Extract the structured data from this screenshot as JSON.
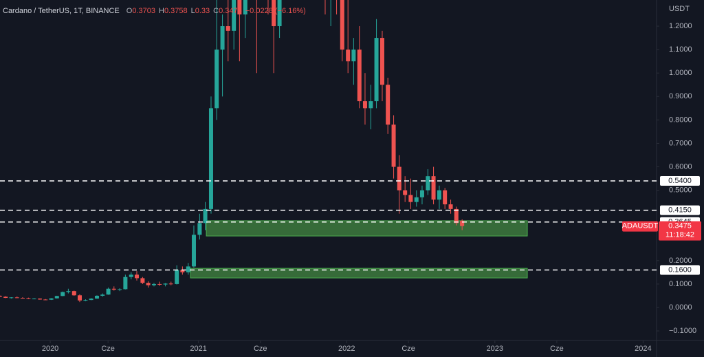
{
  "chart_data": {
    "type": "candlestick",
    "title": "Cardano / TetherUS, 1T, BINANCE",
    "ohlc_letters": [
      "O",
      "H",
      "L",
      "C"
    ],
    "change_label": "−0.0228 (−6.16%)",
    "y_axis_label": "USDT",
    "up_color": "#26a69a",
    "down_color": "#ef5350",
    "x": [
      2019.66,
      2019.699,
      2019.737,
      2019.776,
      2019.814,
      2019.853,
      2019.891,
      2019.93,
      2019.968,
      2020.007,
      2020.045,
      2020.084,
      2020.122,
      2020.161,
      2020.199,
      2020.238,
      2020.276,
      2020.315,
      2020.353,
      2020.392,
      2020.43,
      2020.469,
      2020.507,
      2020.546,
      2020.584,
      2020.623,
      2020.661,
      2020.7,
      2020.738,
      2020.777,
      2020.815,
      2020.854,
      2020.892,
      2020.931,
      2020.969,
      2021.008,
      2021.046,
      2021.085,
      2021.123,
      2021.162,
      2021.2,
      2021.239,
      2021.277,
      2021.316,
      2021.354,
      2021.393,
      2021.431,
      2021.47,
      2021.508,
      2021.547,
      2021.585,
      2021.624,
      2021.662,
      2021.701,
      2021.739,
      2021.778,
      2021.816,
      2021.855,
      2021.893,
      2021.932,
      2021.97,
      2022.009,
      2022.047,
      2022.086,
      2022.124,
      2022.163,
      2022.201,
      2022.24,
      2022.278,
      2022.317,
      2022.355,
      2022.394,
      2022.432,
      2022.471,
      2022.509,
      2022.548,
      2022.586,
      2022.625,
      2022.663,
      2022.702,
      2022.74,
      2022.779
    ],
    "open": [
      0.05,
      0.046,
      0.041,
      0.043,
      0.041,
      0.04,
      0.037,
      0.038,
      0.034,
      0.033,
      0.039,
      0.049,
      0.066,
      0.07,
      0.052,
      0.03,
      0.032,
      0.038,
      0.05,
      0.055,
      0.08,
      0.076,
      0.078,
      0.13,
      0.14,
      0.125,
      0.105,
      0.095,
      0.1,
      0.098,
      0.102,
      0.1,
      0.16,
      0.15,
      0.175,
      0.31,
      0.36,
      0.42,
      0.85,
      1.1,
      1.2,
      1.18,
      1.4,
      1.25,
      1.55,
      2.2,
      1.5,
      1.45,
      1.35,
      1.2,
      1.38,
      2.1,
      2.8,
      2.3,
      2.15,
      2.1,
      1.95,
      1.6,
      1.35,
      1.45,
      1.32,
      1.1,
      1.05,
      1.1,
      0.88,
      0.85,
      0.88,
      1.15,
      0.95,
      0.78,
      0.6,
      0.5,
      0.48,
      0.45,
      0.47,
      0.5,
      0.56,
      0.46,
      0.5,
      0.44,
      0.42,
      0.3703
    ],
    "high": [
      0.052,
      0.048,
      0.044,
      0.047,
      0.044,
      0.042,
      0.04,
      0.039,
      0.036,
      0.04,
      0.05,
      0.068,
      0.08,
      0.072,
      0.056,
      0.035,
      0.04,
      0.052,
      0.06,
      0.085,
      0.09,
      0.082,
      0.14,
      0.15,
      0.155,
      0.13,
      0.112,
      0.105,
      0.11,
      0.104,
      0.11,
      0.18,
      0.175,
      0.19,
      0.35,
      0.4,
      0.45,
      0.9,
      1.48,
      1.25,
      1.35,
      1.45,
      1.55,
      1.7,
      2.45,
      2.3,
      1.8,
      1.6,
      1.45,
      1.4,
      2.2,
      3.0,
      3.1,
      2.4,
      2.25,
      2.2,
      2.1,
      1.75,
      1.5,
      1.5,
      1.35,
      1.6,
      1.15,
      1.2,
      1.0,
      0.95,
      1.23,
      1.18,
      0.98,
      0.82,
      0.65,
      0.56,
      0.55,
      0.5,
      0.52,
      0.59,
      0.6,
      0.52,
      0.51,
      0.46,
      0.43,
      0.3758
    ],
    "low": [
      0.044,
      0.04,
      0.038,
      0.04,
      0.038,
      0.036,
      0.035,
      0.033,
      0.032,
      0.032,
      0.038,
      0.048,
      0.06,
      0.05,
      0.023,
      0.027,
      0.031,
      0.037,
      0.046,
      0.054,
      0.072,
      0.07,
      0.077,
      0.12,
      0.115,
      0.1,
      0.085,
      0.09,
      0.092,
      0.09,
      0.095,
      0.098,
      0.14,
      0.14,
      0.17,
      0.29,
      0.33,
      0.4,
      0.8,
      0.9,
      1.05,
      1.1,
      1.05,
      1.15,
      1.5,
      1.0,
      1.35,
      1.25,
      1.0,
      1.15,
      1.35,
      2.0,
      2.2,
      2.0,
      2.0,
      1.85,
      1.5,
      1.25,
      1.2,
      1.25,
      1.05,
      1.0,
      0.95,
      0.85,
      0.78,
      0.76,
      0.85,
      0.88,
      0.74,
      0.55,
      0.4,
      0.45,
      0.42,
      0.43,
      0.44,
      0.48,
      0.44,
      0.42,
      0.42,
      0.4,
      0.35,
      0.33
    ],
    "close": [
      0.046,
      0.041,
      0.043,
      0.041,
      0.04,
      0.037,
      0.038,
      0.034,
      0.033,
      0.039,
      0.049,
      0.066,
      0.07,
      0.052,
      0.03,
      0.032,
      0.038,
      0.05,
      0.055,
      0.08,
      0.076,
      0.078,
      0.13,
      0.14,
      0.125,
      0.105,
      0.095,
      0.1,
      0.098,
      0.102,
      0.1,
      0.16,
      0.15,
      0.175,
      0.31,
      0.36,
      0.42,
      0.85,
      1.1,
      1.2,
      1.18,
      1.4,
      1.25,
      1.55,
      2.2,
      1.5,
      1.45,
      1.35,
      1.2,
      1.38,
      2.1,
      2.8,
      2.3,
      2.15,
      2.1,
      1.95,
      1.6,
      1.35,
      1.45,
      1.32,
      1.1,
      1.05,
      1.1,
      0.88,
      0.85,
      0.88,
      1.15,
      0.95,
      0.78,
      0.6,
      0.5,
      0.48,
      0.45,
      0.47,
      0.5,
      0.56,
      0.46,
      0.5,
      0.44,
      0.42,
      0.36,
      0.3475
    ],
    "xlim": [
      2019.661,
      2024.091
    ],
    "xticks": [
      2020,
      {
        "value": 2020.39,
        "label": "Cze"
      },
      2021,
      {
        "value": 2021.418,
        "label": "Cze"
      },
      2022,
      {
        "value": 2022.417,
        "label": "Cze"
      },
      2023,
      {
        "value": 2023.418,
        "label": "Cze"
      },
      2024
    ],
    "ylim": [
      -0.1408,
      1.3116
    ],
    "yticks": [
      {
        "value": 1.2,
        "label": "1.2000"
      },
      {
        "value": 1.1,
        "label": "1.1000"
      },
      {
        "value": 1.0,
        "label": "1.0000"
      },
      {
        "value": 0.9,
        "label": "0.9000"
      },
      {
        "value": 0.8,
        "label": "0.8000"
      },
      {
        "value": 0.7,
        "label": "0.7000"
      },
      {
        "value": 0.6,
        "label": "0.6000"
      },
      {
        "value": 0.5,
        "label": "0.5000"
      },
      {
        "value": 0.2,
        "label": "0.2000"
      },
      {
        "value": 0.1,
        "label": "0.1000"
      },
      {
        "value": 0,
        "label": "0.0000"
      },
      {
        "value": -0.1,
        "label": "−0.1000"
      }
    ],
    "level_color": "#ffffff",
    "levels": [
      {
        "value": 0.54,
        "label": "0.5400"
      },
      {
        "value": 0.415,
        "label": "0.4150"
      },
      {
        "value": 0.3645,
        "label": "0.3645"
      },
      {
        "value": 0.16,
        "label": "0.1600"
      }
    ],
    "zone_color": "#3d7a3d",
    "zones": [
      {
        "x": [
          2021.053,
          2023.219
        ],
        "y": [
          0.305,
          0.37
        ]
      },
      {
        "x": [
          2020.946,
          2023.219
        ],
        "y": [
          0.126,
          0.167
        ]
      }
    ],
    "price_tag": {
      "symbol": "ADAUSDT",
      "countdown": "11:18:42",
      "color": "#f23645"
    }
  }
}
